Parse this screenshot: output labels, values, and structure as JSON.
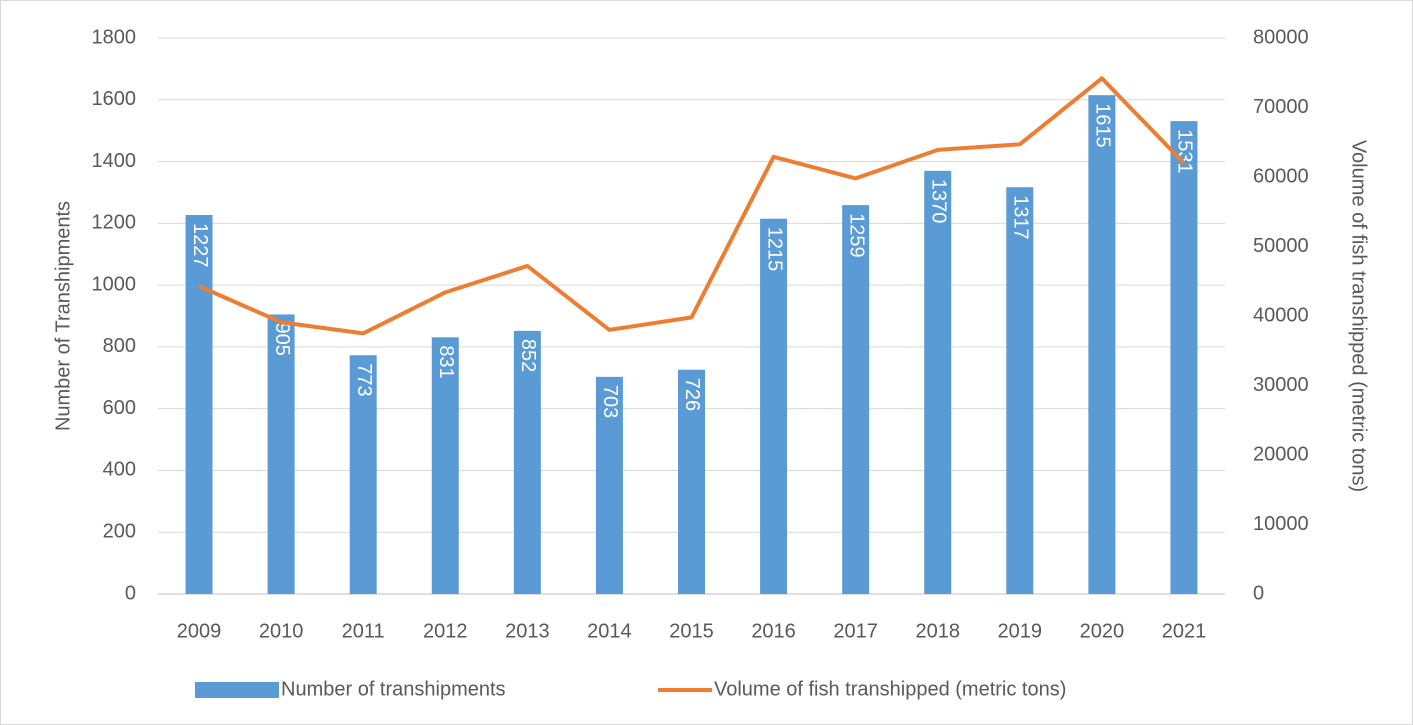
{
  "chart_data": {
    "type": "bar_line",
    "categories": [
      "2009",
      "2010",
      "2011",
      "2012",
      "2013",
      "2014",
      "2015",
      "2016",
      "2017",
      "2018",
      "2019",
      "2020",
      "2021"
    ],
    "ylabel": "Number of Transhipments",
    "y2label": "Volume of fish transhipped (metric tons)",
    "ylim": [
      0,
      1800
    ],
    "yticks": [
      0,
      200,
      400,
      600,
      800,
      1000,
      1200,
      1400,
      1600,
      1800
    ],
    "y2lim": [
      0,
      80000
    ],
    "y2ticks": [
      0,
      10000,
      20000,
      30000,
      40000,
      50000,
      60000,
      70000,
      80000
    ],
    "grid": true,
    "legend": "bottom",
    "series": [
      {
        "name": "Number of transhipments",
        "type": "bar",
        "color": "#5b9bd5",
        "values": [
          1227,
          905,
          773,
          831,
          852,
          703,
          726,
          1215,
          1259,
          1370,
          1317,
          1615,
          1531
        ]
      },
      {
        "name": "Volume of fish transhipped (metric tons)",
        "type": "line",
        "axis": "y2",
        "color": "#ed7d31",
        "values": [
          44300,
          39100,
          37500,
          43400,
          47200,
          38000,
          39800,
          62900,
          59800,
          63900,
          64700,
          74200,
          62000
        ]
      }
    ]
  }
}
